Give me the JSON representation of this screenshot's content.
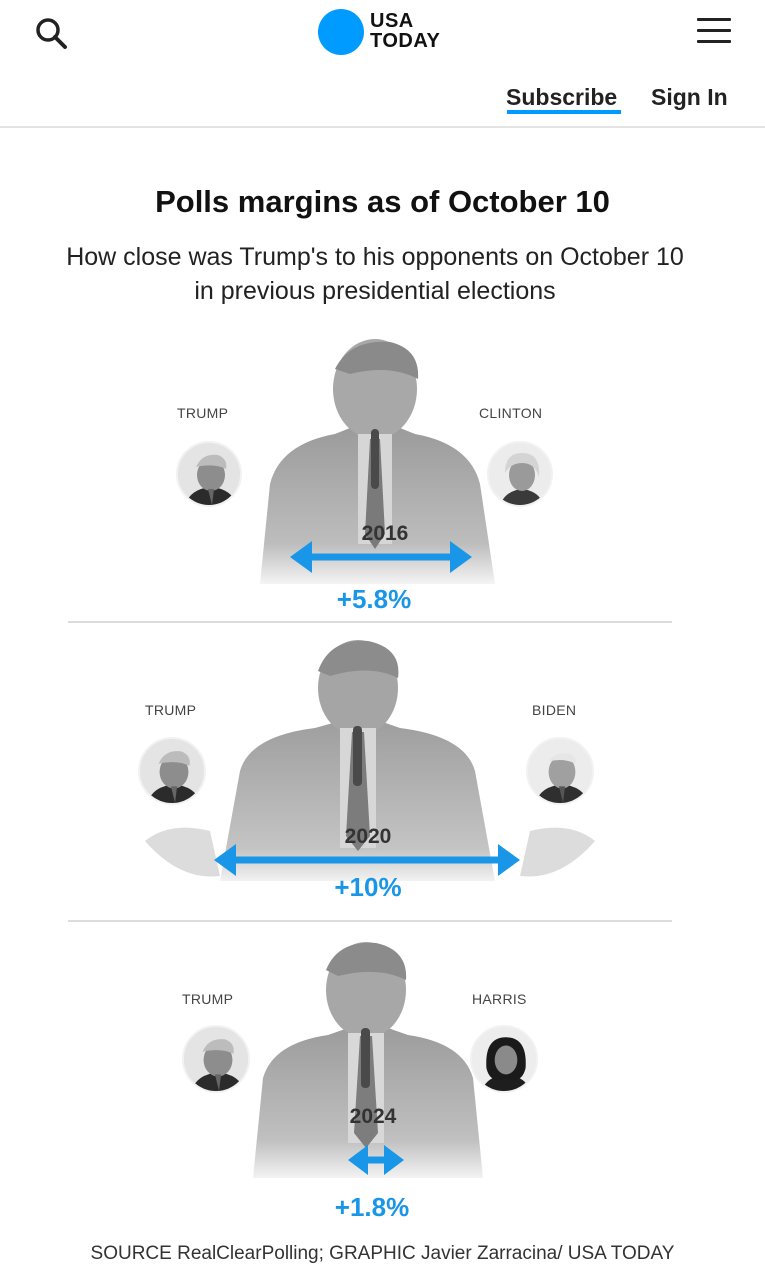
{
  "header": {
    "logo_text": "USA\nTODAY",
    "subscribe_label": "Subscribe",
    "signin_label": "Sign In",
    "icons": {
      "search": "search-icon",
      "menu": "hamburger-menu-icon"
    },
    "accent_color": "#009bff"
  },
  "graphic": {
    "title": "Polls margins as of October 10",
    "subtitle": "How close was Trump's to his opponents on October 10 in previous presidential elections",
    "panels": [
      {
        "year": "2016",
        "left_name": "TRUMP",
        "right_name": "CLINTON",
        "margin": "+5.8%",
        "margin_value": 5.8
      },
      {
        "year": "2020",
        "left_name": "TRUMP",
        "right_name": "BIDEN",
        "margin": "+10%",
        "margin_value": 10
      },
      {
        "year": "2024",
        "left_name": "TRUMP",
        "right_name": "HARRIS",
        "margin": "+1.8%",
        "margin_value": 1.8
      }
    ],
    "arrow_color": "#1a96e8",
    "source": "SOURCE RealClearPolling; GRAPHIC Javier Zarracina/ USA TODAY"
  }
}
